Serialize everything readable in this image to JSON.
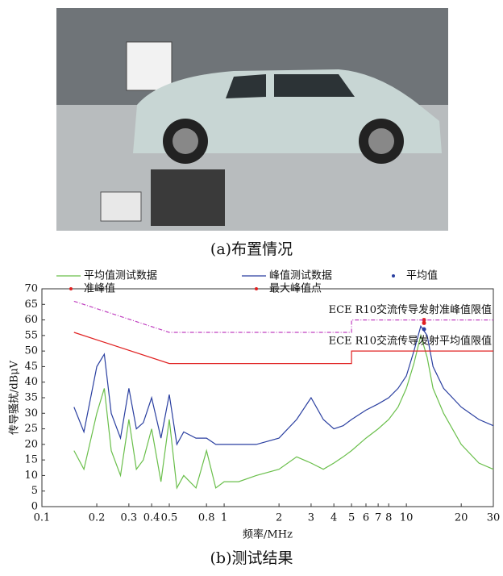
{
  "figure": {
    "caption_a": "(a)布置情况",
    "caption_b": "(b)测试结果"
  },
  "chart_data": {
    "type": "line",
    "x_label": "频率/MHz",
    "y_label": "传导骚扰/dBμV",
    "xlim": [
      0.1,
      30
    ],
    "ylim": [
      0,
      70
    ],
    "log_x": true,
    "xticks": [
      0.1,
      0.2,
      0.3,
      0.4,
      0.5,
      0.8,
      1,
      2,
      3,
      4,
      5,
      6,
      7,
      8,
      10,
      20,
      30
    ],
    "yticks": [
      0,
      5,
      10,
      15,
      20,
      25,
      30,
      35,
      40,
      45,
      50,
      55,
      60,
      65,
      70
    ],
    "series": [
      {
        "name": "平均值测试数据",
        "color": "#6abf4b",
        "style": "line",
        "in_legend": true,
        "x": [
          0.15,
          0.17,
          0.2,
          0.22,
          0.24,
          0.27,
          0.3,
          0.33,
          0.36,
          0.4,
          0.45,
          0.5,
          0.55,
          0.6,
          0.7,
          0.8,
          0.9,
          1,
          1.2,
          1.5,
          2,
          2.5,
          3,
          3.5,
          4,
          4.5,
          5,
          6,
          7,
          8,
          9,
          10,
          11,
          12,
          13,
          14,
          16,
          20,
          25,
          30
        ],
        "values": [
          18,
          12,
          30,
          38,
          18,
          10,
          28,
          12,
          15,
          25,
          8,
          28,
          6,
          10,
          6,
          18,
          6,
          8,
          8,
          10,
          12,
          16,
          14,
          12,
          14,
          16,
          18,
          22,
          25,
          28,
          32,
          38,
          46,
          55,
          48,
          38,
          30,
          20,
          14,
          12
        ]
      },
      {
        "name": "峰值测试数据",
        "color": "#2a3fa0",
        "style": "line",
        "in_legend": true,
        "x": [
          0.15,
          0.17,
          0.2,
          0.22,
          0.24,
          0.27,
          0.3,
          0.33,
          0.36,
          0.4,
          0.45,
          0.5,
          0.55,
          0.6,
          0.7,
          0.8,
          0.9,
          1,
          1.2,
          1.5,
          2,
          2.5,
          3,
          3.5,
          4,
          4.5,
          5,
          6,
          7,
          8,
          9,
          10,
          11,
          12,
          13,
          14,
          16,
          20,
          25,
          30
        ],
        "values": [
          32,
          24,
          45,
          49,
          30,
          22,
          38,
          25,
          27,
          35,
          22,
          36,
          20,
          24,
          22,
          22,
          20,
          20,
          20,
          20,
          22,
          28,
          35,
          28,
          25,
          26,
          28,
          31,
          33,
          35,
          38,
          42,
          50,
          58,
          55,
          45,
          38,
          32,
          28,
          26
        ]
      },
      {
        "name": "平均值",
        "color": "#2a3fa0",
        "style": "marker",
        "in_legend": true,
        "x": [
          12.5
        ],
        "values": [
          57
        ]
      },
      {
        "name": "准峰值",
        "color": "#e02020",
        "style": "marker",
        "in_legend": true,
        "x": [
          12.5
        ],
        "values": [
          59
        ]
      },
      {
        "name": "最大峰值点",
        "color": "#e02020",
        "style": "marker",
        "in_legend": true,
        "x": [
          12.5
        ],
        "values": [
          60
        ]
      },
      {
        "name": "ECE R10交流传导发射准峰值限值",
        "color": "#c040c0",
        "style": "dashdot",
        "in_legend": false,
        "x": [
          0.15,
          0.5,
          5,
          5,
          30
        ],
        "values": [
          66,
          56,
          56,
          60,
          60
        ]
      },
      {
        "name": "ECE R10交流传导发射平均值限值",
        "color": "#e02020",
        "style": "line",
        "in_legend": false,
        "x": [
          0.15,
          0.5,
          5,
          5,
          30
        ],
        "values": [
          56,
          46,
          46,
          50,
          50
        ]
      }
    ]
  }
}
